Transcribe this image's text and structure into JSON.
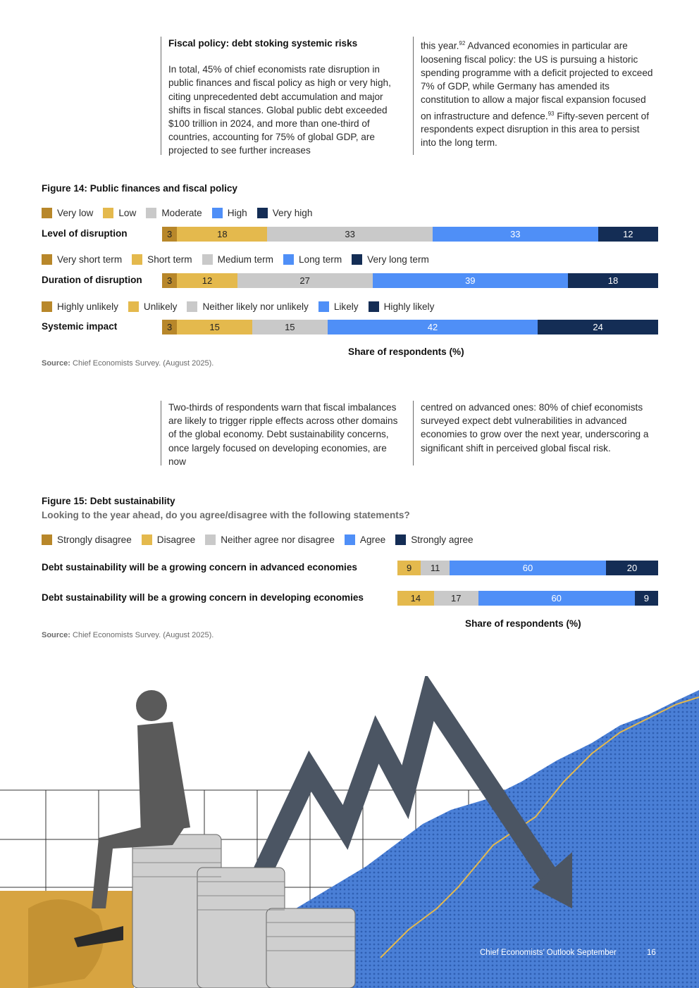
{
  "text_top": {
    "heading": "Fiscal policy: debt stoking systemic risks",
    "col1": "In total, 45% of chief economists rate disruption in public finances and fiscal policy as high or very high, citing unprecedented debt accumulation and major shifts in fiscal stances. Global public debt exceeded $100 trillion in 2024, and more than one-third of countries, accounting for 75% of global GDP, are projected to see further increases",
    "col2_a": "this year.",
    "col2_sup1": "92",
    "col2_b": " Advanced economies in particular are loosening fiscal policy: the US is pursuing a historic spending programme with a deficit projected to exceed 7% of GDP, while Germany has amended its constitution to allow a major fiscal expansion focused on infrastructure and defence.",
    "col2_sup2": "93",
    "col2_c": " Fifty-seven percent of respondents expect disruption in this area to persist into the long term."
  },
  "text_mid": {
    "col1": "Two-thirds of respondents warn that fiscal imbalances are likely to trigger ripple effects across other domains of the global economy. Debt sustainability concerns, once largely focused on developing economies, are now",
    "col2": "centred on advanced ones: 80% of chief economists surveyed expect debt vulnerabilities in advanced economies to grow over the next year, underscoring a significant shift in perceived global fiscal risk."
  },
  "colors": {
    "c1": "#b8872a",
    "c2": "#e4b94d",
    "c3": "#c9c9c9",
    "c4": "#4f8ff7",
    "c5": "#142d55"
  },
  "chart_data": [
    {
      "type": "bar",
      "title": "Figure 14: Public finances and fiscal policy",
      "xlabel": "Share of respondents (%)",
      "stacked": true,
      "orientation": "horizontal",
      "rows": [
        {
          "label": "Level of disruption",
          "legend": [
            "Very low",
            "Low",
            "Moderate",
            "High",
            "Very high"
          ],
          "values": [
            3,
            18,
            33,
            33,
            12
          ]
        },
        {
          "label": "Duration of disruption",
          "legend": [
            "Very short term",
            "Short term",
            "Medium term",
            "Long term",
            "Very long term"
          ],
          "values": [
            3,
            12,
            27,
            39,
            18
          ]
        },
        {
          "label": "Systemic impact",
          "legend": [
            "Highly unlikely",
            "Unlikely",
            "Neither likely nor unlikely",
            "Likely",
            "Highly likely"
          ],
          "values": [
            3,
            15,
            15,
            42,
            24
          ]
        }
      ],
      "source_label": "Source:",
      "source_text": "Chief Economists Survey. (August 2025)."
    },
    {
      "type": "bar",
      "title": "Figure 15: Debt sustainability",
      "subtitle": "Looking to the year ahead, do you agree/disagree with the following statements?",
      "xlabel": "Share of respondents (%)",
      "stacked": true,
      "orientation": "horizontal",
      "legend": [
        "Strongly disagree",
        "Disagree",
        "Neither agree nor disagree",
        "Agree",
        "Strongly agree"
      ],
      "rows": [
        {
          "label": "Debt sustainability will be a growing concern in advanced economies",
          "values": [
            0,
            9,
            11,
            60,
            20
          ]
        },
        {
          "label": "Debt sustainability will be a growing concern in developing economies",
          "values": [
            0,
            14,
            17,
            60,
            9
          ]
        }
      ],
      "source_label": "Source:",
      "source_text": "Chief Economists Survey. (August 2025)."
    }
  ],
  "footer": {
    "title": "Chief Economists’ Outlook September",
    "page": "16"
  }
}
